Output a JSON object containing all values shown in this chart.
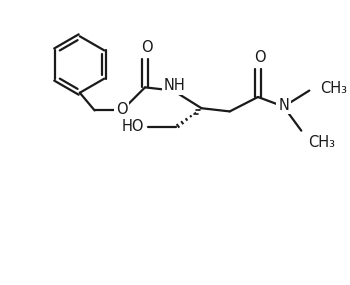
{
  "background_color": "#ffffff",
  "line_color": "#1a1a1a",
  "line_width": 1.6,
  "font_size": 10.5,
  "figsize": [
    3.5,
    2.85
  ],
  "dpi": 100,
  "xlim": [
    0,
    10
  ],
  "ylim": [
    0,
    8.14
  ]
}
